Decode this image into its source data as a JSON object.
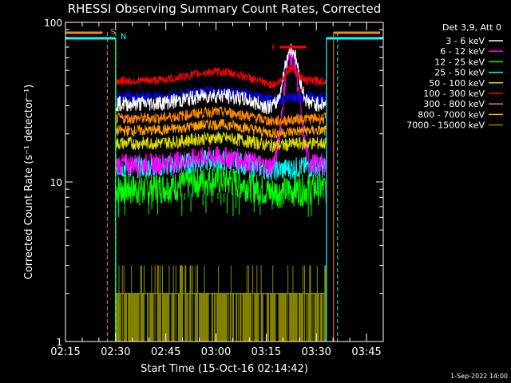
{
  "chart_data": {
    "type": "line",
    "title": "RHESSI Observing Summary Count Rates, Corrected",
    "xlabel": "Start Time (15-Oct-16 02:14:42)",
    "ylabel": "Corrected Count Rate (s⁻¹ detector⁻¹)",
    "yscale": "log",
    "ylim": [
      1,
      100
    ],
    "xlim_minutes": [
      0,
      95
    ],
    "x_ticks": [
      {
        "label": "02:15",
        "min": 0
      },
      {
        "label": "02:30",
        "min": 15
      },
      {
        "label": "02:45",
        "min": 30
      },
      {
        "label": "03:00",
        "min": 45
      },
      {
        "label": "03:15",
        "min": 60
      },
      {
        "label": "03:30",
        "min": 75
      },
      {
        "label": "03:45",
        "min": 90
      }
    ],
    "y_ticks": [
      {
        "label": "1",
        "value": 1
      },
      {
        "label": "10",
        "value": 10
      },
      {
        "label": "100",
        "value": 100
      }
    ],
    "legend_header": "Det 3,9, Att 0",
    "series": [
      {
        "name": "3 - 6 keV",
        "color": "#ffffff",
        "base": 31,
        "amp": 4,
        "noise": 0.07,
        "flare": 38
      },
      {
        "name": "6 - 12 keV",
        "color": "#ff00ff",
        "base": 13,
        "amp": 1.5,
        "noise": 0.1,
        "flare": 50
      },
      {
        "name": "12 - 25 keV",
        "color": "#00ff00",
        "base": 9.2,
        "amp": 1.2,
        "noise": 0.14,
        "flare": 0
      },
      {
        "name": "25 - 50 keV",
        "color": "#00ffff",
        "base": 12.5,
        "amp": 1.3,
        "noise": 0.1,
        "flare": 0
      },
      {
        "name": "50 - 100 keV",
        "color": "#dddd00",
        "base": 17.5,
        "amp": 1.4,
        "noise": 0.06,
        "flare": 0
      },
      {
        "name": "100 - 300 keV",
        "color": "#ff0000",
        "base": 43,
        "amp": 6,
        "noise": 0.04,
        "flare": 10
      },
      {
        "name": "300 - 800 keV",
        "color": "#ff8800",
        "base": 25,
        "amp": 2.5,
        "noise": 0.05,
        "flare": 0
      },
      {
        "name": "800 - 7000 keV",
        "color": "#ffa000",
        "base": 21,
        "amp": 2,
        "noise": 0.05,
        "flare": 0
      },
      {
        "name": "7000 - 15000 keV",
        "color": "#888800",
        "base": 1.6,
        "amp": 0,
        "noise": 0,
        "flare": 0
      }
    ],
    "extra_series": [
      {
        "name": "3 - 6 keV (blue trace)",
        "color": "#0000ff",
        "base": 34,
        "amp": 3,
        "noise": 0.05
      }
    ],
    "data_gaps_minutes": [
      [
        0,
        15
      ],
      [
        78,
        95
      ]
    ],
    "annotations": [
      {
        "text": "S",
        "color": "#ff8800",
        "x_min": 12.5
      },
      {
        "text": "N",
        "color": "#00ffff",
        "x_min": 15
      },
      {
        "text": "F",
        "color": "#ff0000",
        "x_min": 66
      }
    ],
    "flare_bar": {
      "start_min": 64,
      "end_min": 72,
      "value": 70
    },
    "saa_bar_color": "#ff8800",
    "night_bar_color": "#00ffff",
    "flare_peak_min": 67.5,
    "footer": "1-Sep-2022 14:00"
  }
}
